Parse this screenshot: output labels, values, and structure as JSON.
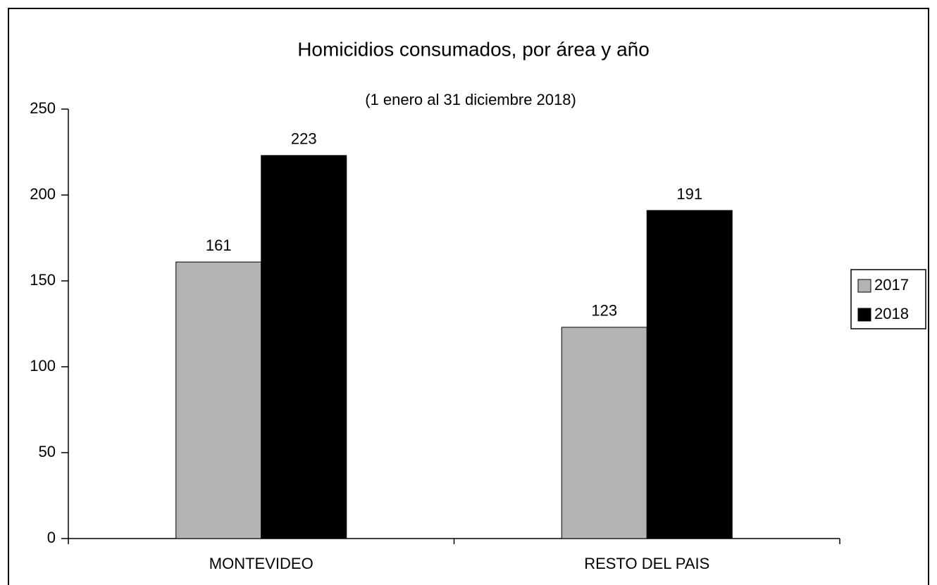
{
  "chart_data": {
    "type": "bar",
    "title": "Homicidios consumados, por área y año",
    "subtitle": "(1 enero al 31 diciembre 2018)",
    "categories": [
      "MONTEVIDEO",
      "RESTO DEL PAIS"
    ],
    "series": [
      {
        "name": "2017",
        "color": "#b3b3b3",
        "values": [
          161,
          123
        ]
      },
      {
        "name": "2018",
        "color": "#000000",
        "values": [
          223,
          191
        ]
      }
    ],
    "ylim": [
      0,
      250
    ],
    "yticks": [
      0,
      50,
      100,
      150,
      200,
      250
    ],
    "grid": false,
    "legend": "right"
  }
}
